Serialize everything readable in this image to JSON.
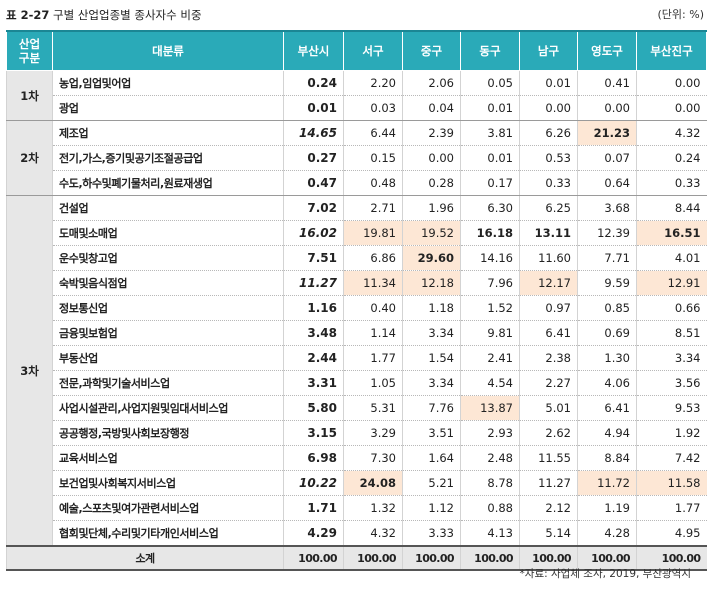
{
  "caption": {
    "number": "표 2-27",
    "title": "구별 산업업종별 종사자수 비중",
    "unit": "(단위: %)"
  },
  "headers": [
    "산업\n구분",
    "대분류",
    "부산시",
    "서구",
    "중구",
    "동구",
    "남구",
    "영도구",
    "부산진구"
  ],
  "groups": [
    {
      "label": "1차",
      "rows": [
        {
          "name": "농업,임업및어업",
          "busan": "0.24",
          "v": [
            "2.20",
            "2.06",
            "0.05",
            "0.01",
            "0.41",
            "0.00"
          ]
        },
        {
          "name": "광업",
          "busan": "0.01",
          "v": [
            "0.03",
            "0.04",
            "0.01",
            "0.00",
            "0.00",
            "0.00"
          ]
        }
      ]
    },
    {
      "label": "2차",
      "rows": [
        {
          "name": "제조업",
          "busan": "14.65",
          "v": [
            "6.44",
            "2.39",
            "3.81",
            "6.26",
            "21.23",
            "4.32"
          ]
        },
        {
          "name": "전기,가스,증기및공기조절공급업",
          "busan": "0.27",
          "v": [
            "0.15",
            "0.00",
            "0.01",
            "0.53",
            "0.07",
            "0.24"
          ]
        },
        {
          "name": "수도,하수및폐기물처리,원료재생업",
          "busan": "0.47",
          "v": [
            "0.48",
            "0.28",
            "0.17",
            "0.33",
            "0.64",
            "0.33"
          ]
        }
      ]
    },
    {
      "label": "3차",
      "rows": [
        {
          "name": "건설업",
          "busan": "7.02",
          "v": [
            "2.71",
            "1.96",
            "6.30",
            "6.25",
            "3.68",
            "8.44"
          ]
        },
        {
          "name": "도매및소매업",
          "busan": "16.02",
          "v": [
            "19.81",
            "19.52",
            "16.18",
            "13.11",
            "12.39",
            "16.51"
          ]
        },
        {
          "name": "운수및창고업",
          "busan": "7.51",
          "v": [
            "6.86",
            "29.60",
            "14.16",
            "11.60",
            "7.71",
            "4.01"
          ]
        },
        {
          "name": "숙박및음식점업",
          "busan": "11.27",
          "v": [
            "11.34",
            "12.18",
            "7.96",
            "12.17",
            "9.59",
            "12.91"
          ]
        },
        {
          "name": "정보통신업",
          "busan": "1.16",
          "v": [
            "0.40",
            "1.18",
            "1.52",
            "0.97",
            "0.85",
            "0.66"
          ]
        },
        {
          "name": "금융및보험업",
          "busan": "3.48",
          "v": [
            "1.14",
            "3.34",
            "9.81",
            "6.41",
            "0.69",
            "8.51"
          ]
        },
        {
          "name": "부동산업",
          "busan": "2.44",
          "v": [
            "1.77",
            "1.54",
            "2.41",
            "2.38",
            "1.30",
            "3.34"
          ]
        },
        {
          "name": "전문,과학및기술서비스업",
          "busan": "3.31",
          "v": [
            "1.05",
            "3.34",
            "4.54",
            "2.27",
            "4.06",
            "3.56"
          ]
        },
        {
          "name": "사업시설관리,사업지원및임대서비스업",
          "busan": "5.80",
          "v": [
            "5.31",
            "7.76",
            "13.87",
            "5.01",
            "6.41",
            "9.53"
          ]
        },
        {
          "name": "공공행정,국방및사회보장행정",
          "busan": "3.15",
          "v": [
            "3.29",
            "3.51",
            "2.93",
            "2.62",
            "4.94",
            "1.92"
          ]
        },
        {
          "name": "교육서비스업",
          "busan": "6.98",
          "v": [
            "7.30",
            "1.64",
            "2.48",
            "11.55",
            "8.84",
            "7.42"
          ]
        },
        {
          "name": "보건업및사회복지서비스업",
          "busan": "10.22",
          "v": [
            "24.08",
            "5.21",
            "8.78",
            "11.27",
            "11.72",
            "11.58"
          ]
        },
        {
          "name": "예술,스포츠및여가관련서비스업",
          "busan": "1.71",
          "v": [
            "1.32",
            "1.12",
            "0.88",
            "2.12",
            "1.19",
            "1.77"
          ]
        },
        {
          "name": "협회및단체,수리및기타개인서비스업",
          "busan": "4.29",
          "v": [
            "4.32",
            "3.33",
            "4.13",
            "5.14",
            "4.28",
            "4.95"
          ]
        }
      ]
    }
  ],
  "total": {
    "label": "소계",
    "busan": "100.00",
    "v": [
      "100.00",
      "100.00",
      "100.00",
      "100.00",
      "100.00",
      "100.00"
    ]
  },
  "source": "*자료: 사업체 조사, 2019, 부산광역시",
  "colors": {
    "header_bg": "#2aaab8",
    "highlight": "#fde7d5",
    "group_bg": "#e7e7e7"
  }
}
